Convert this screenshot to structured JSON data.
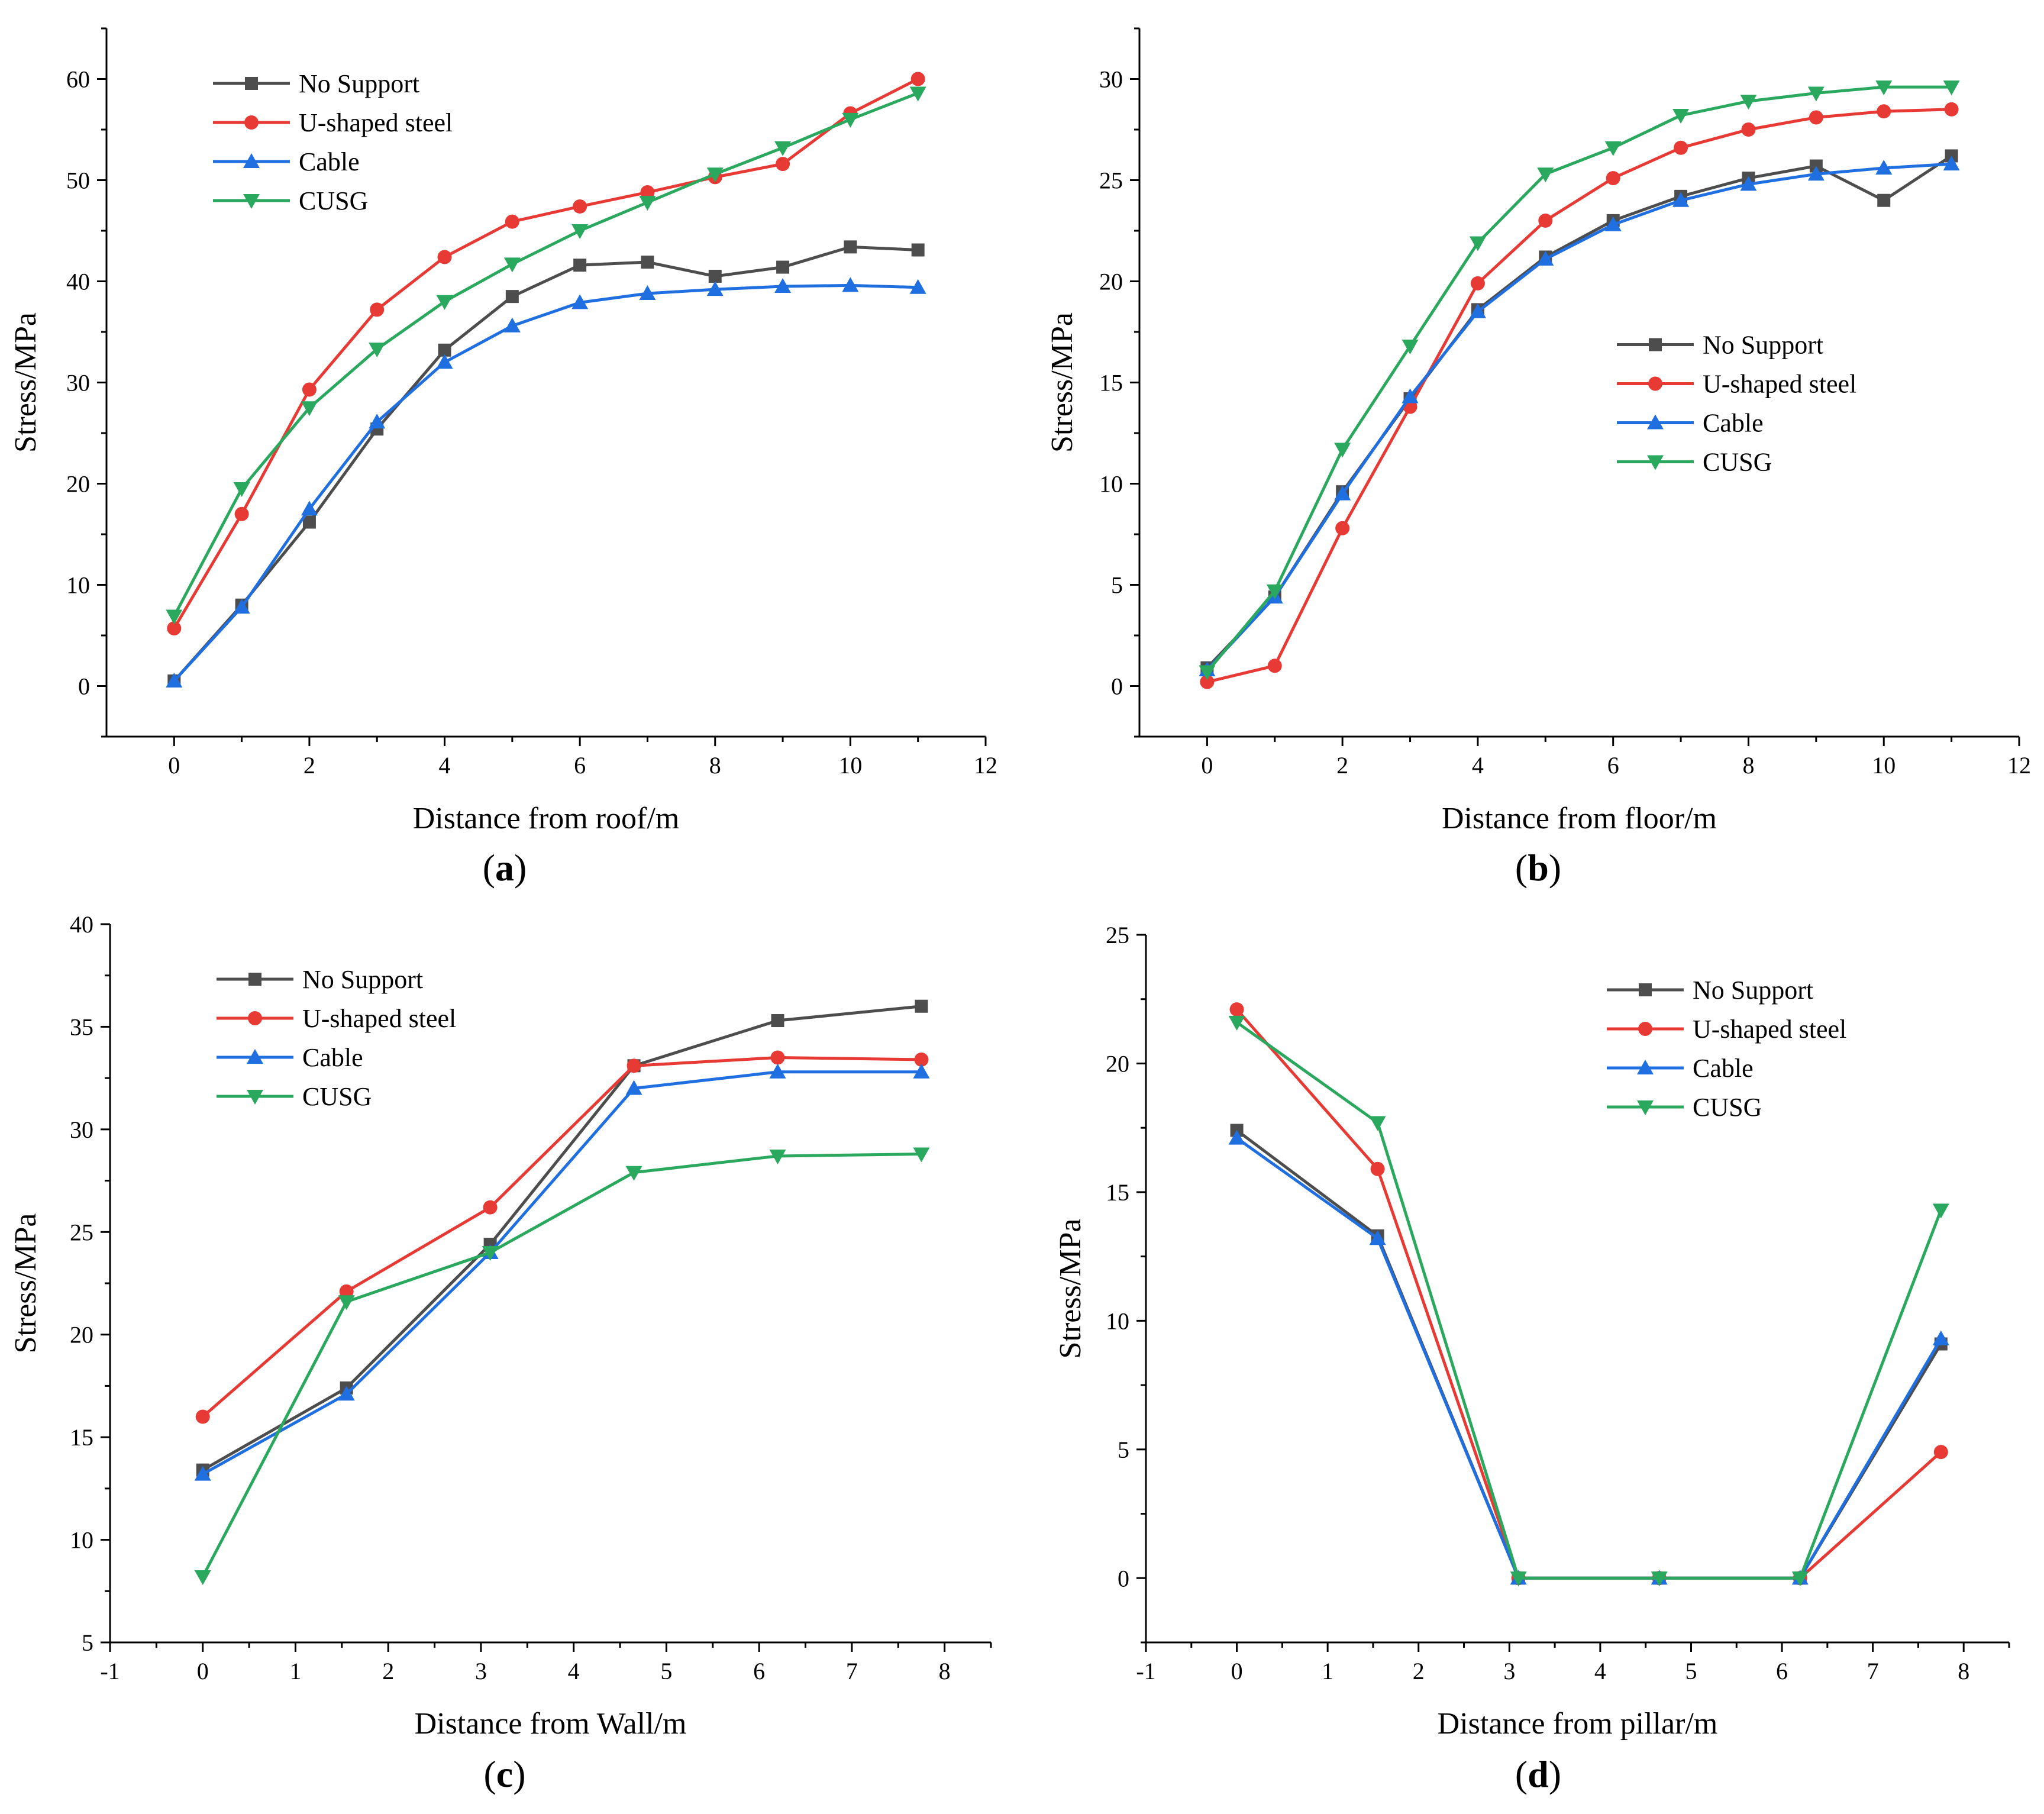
{
  "figure": {
    "panels": [
      "(a)",
      "(b)",
      "(c)",
      "(d)"
    ]
  },
  "series_styles": [
    {
      "name": "No Support",
      "color": "#4d4d4d",
      "marker": "square"
    },
    {
      "name": "U-shaped steel",
      "color": "#e83a35",
      "marker": "circle"
    },
    {
      "name": "Cable",
      "color": "#1f6fe0",
      "marker": "triangle-up"
    },
    {
      "name": "CUSG",
      "color": "#2aa85e",
      "marker": "triangle-down"
    }
  ],
  "chart_data": [
    {
      "type": "line",
      "panel": "(a)",
      "panel_letter": "a",
      "xlabel": "Distance from roof/m",
      "ylabel": "Stress/MPa",
      "xlim": [
        -1,
        12
      ],
      "ylim": [
        -5,
        65
      ],
      "xticks": [
        0,
        2,
        4,
        6,
        8,
        10,
        12
      ],
      "yticks": [
        0,
        10,
        20,
        30,
        40,
        50,
        60
      ],
      "legend_position": "top-left",
      "x": [
        0,
        1,
        2,
        3,
        4,
        5,
        6,
        7,
        8,
        9,
        10,
        11
      ],
      "series": [
        {
          "name": "No Support",
          "values": [
            0.5,
            8.0,
            16.2,
            25.4,
            33.2,
            38.5,
            41.6,
            41.9,
            40.5,
            41.4,
            43.4,
            43.1
          ]
        },
        {
          "name": "U-shaped steel",
          "values": [
            5.7,
            17.0,
            29.3,
            37.2,
            42.4,
            45.9,
            47.4,
            48.8,
            50.3,
            51.6,
            56.6,
            60.0
          ]
        },
        {
          "name": "Cable",
          "values": [
            0.5,
            7.8,
            17.5,
            26.1,
            32.0,
            35.6,
            37.9,
            38.8,
            39.2,
            39.5,
            39.6,
            39.4
          ]
        },
        {
          "name": "CUSG",
          "values": [
            6.9,
            19.5,
            27.5,
            33.3,
            38.0,
            41.7,
            45.0,
            47.8,
            50.6,
            53.2,
            56.0,
            58.6
          ]
        }
      ]
    },
    {
      "type": "line",
      "panel": "(b)",
      "panel_letter": "b",
      "xlabel": "Distance from floor/m",
      "ylabel": "Stress/MPa",
      "xlim": [
        -1,
        12
      ],
      "ylim": [
        -2.5,
        32.5
      ],
      "xticks": [
        0,
        2,
        4,
        6,
        8,
        10,
        12
      ],
      "yticks": [
        0,
        5,
        10,
        15,
        20,
        25,
        30
      ],
      "legend_position": "center-right",
      "x": [
        0,
        1,
        2,
        3,
        4,
        5,
        6,
        7,
        8,
        9,
        10,
        11
      ],
      "series": [
        {
          "name": "No Support",
          "values": [
            0.9,
            4.4,
            9.6,
            14.2,
            18.6,
            21.2,
            23.0,
            24.2,
            25.1,
            25.7,
            24.0,
            26.2
          ]
        },
        {
          "name": "U-shaped steel",
          "values": [
            0.2,
            1.0,
            7.8,
            13.8,
            19.9,
            23.0,
            25.1,
            26.6,
            27.5,
            28.1,
            28.4,
            28.5
          ]
        },
        {
          "name": "Cable",
          "values": [
            0.8,
            4.4,
            9.5,
            14.3,
            18.5,
            21.1,
            22.8,
            24.0,
            24.8,
            25.3,
            25.6,
            25.8
          ]
        },
        {
          "name": "CUSG",
          "values": [
            0.7,
            4.7,
            11.7,
            16.8,
            21.9,
            25.3,
            26.6,
            28.2,
            28.9,
            29.3,
            29.6,
            29.6
          ]
        }
      ]
    },
    {
      "type": "line",
      "panel": "(c)",
      "panel_letter": "c",
      "xlabel": "Distance from Wall/m",
      "ylabel": "Stress/MPa",
      "xlim": [
        -1,
        8.5
      ],
      "ylim": [
        5,
        40
      ],
      "xticks": [
        -1,
        0,
        1,
        2,
        3,
        4,
        5,
        6,
        7,
        8
      ],
      "yticks": [
        5,
        10,
        15,
        20,
        25,
        30,
        35,
        40
      ],
      "legend_position": "top-left",
      "x": [
        0,
        1.55,
        3.1,
        4.65,
        6.2,
        7.75
      ],
      "series": [
        {
          "name": "No Support",
          "values": [
            13.4,
            17.4,
            24.4,
            33.1,
            35.3,
            36.0
          ]
        },
        {
          "name": "U-shaped steel",
          "values": [
            16.0,
            22.1,
            26.2,
            33.1,
            33.5,
            33.4
          ]
        },
        {
          "name": "Cable",
          "values": [
            13.2,
            17.1,
            24.0,
            32.0,
            32.8,
            32.8
          ]
        },
        {
          "name": "CUSG",
          "values": [
            8.2,
            21.6,
            24.0,
            27.9,
            28.7,
            28.8
          ]
        }
      ]
    },
    {
      "type": "line",
      "panel": "(d)",
      "panel_letter": "d",
      "xlabel": "Distance from pillar/m",
      "ylabel": "Stress/MPa",
      "xlim": [
        -1,
        8.5
      ],
      "ylim": [
        -2.5,
        25
      ],
      "xticks": [
        -1,
        0,
        1,
        2,
        3,
        4,
        5,
        6,
        7,
        8
      ],
      "yticks": [
        0,
        5,
        10,
        15,
        20,
        25
      ],
      "legend_position": "top-right",
      "x": [
        0,
        1.55,
        3.1,
        4.65,
        6.2,
        7.75
      ],
      "series": [
        {
          "name": "No Support",
          "values": [
            17.4,
            13.3,
            0.0,
            0.0,
            0.0,
            9.1
          ]
        },
        {
          "name": "U-shaped steel",
          "values": [
            22.1,
            15.9,
            0.0,
            0.0,
            0.0,
            4.9
          ]
        },
        {
          "name": "Cable",
          "values": [
            17.1,
            13.2,
            0.0,
            0.0,
            0.0,
            9.3
          ]
        },
        {
          "name": "CUSG",
          "values": [
            21.6,
            17.7,
            0.0,
            0.0,
            0.0,
            14.3
          ]
        }
      ]
    }
  ]
}
